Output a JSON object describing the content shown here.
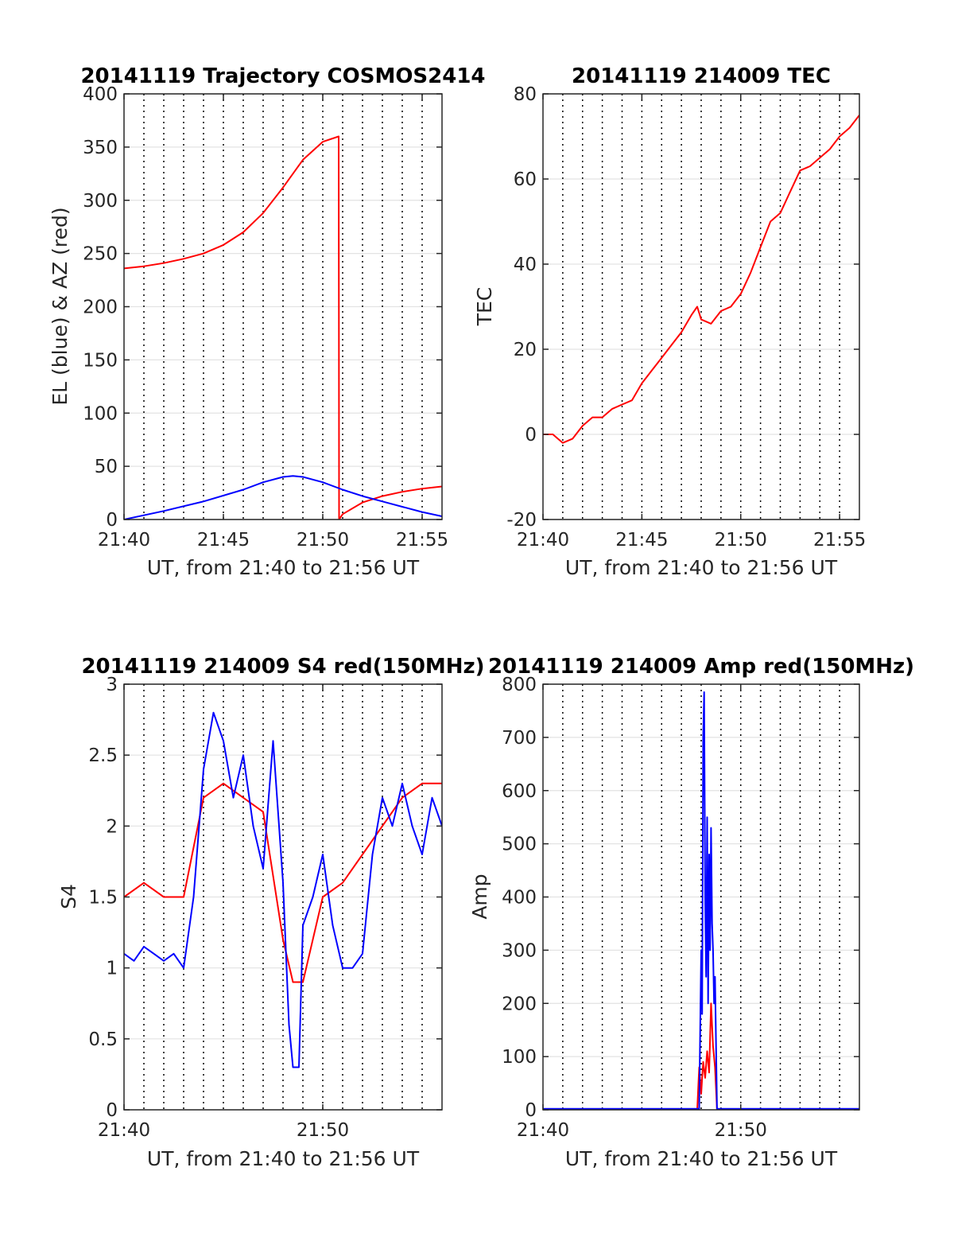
{
  "chart_data": [
    {
      "id": "traj",
      "type": "line",
      "title": "20141119 Trajectory COSMOS2414",
      "xlabel": "UT, from 21:40 to 21:56 UT",
      "ylabel": "EL (blue) & AZ (red)",
      "xlim": [
        0,
        16
      ],
      "ylim": [
        0,
        400
      ],
      "xticks": [
        0,
        5,
        10,
        15
      ],
      "xtick_labels": [
        "21:40",
        "21:45",
        "21:50",
        "21:55"
      ],
      "yticks": [
        0,
        50,
        100,
        150,
        200,
        250,
        300,
        350,
        400
      ],
      "ytick_labels": [
        "0",
        "50",
        "100",
        "150",
        "200",
        "250",
        "300",
        "350",
        "400"
      ],
      "grid": true,
      "series": [
        {
          "color": "#ff0000",
          "x": [
            0,
            1,
            2,
            3,
            4,
            5,
            6,
            7,
            8,
            9,
            10,
            10.8,
            10.81,
            10.82,
            11,
            12,
            13,
            14,
            15,
            16
          ],
          "y": [
            236,
            238,
            241,
            245,
            250,
            258,
            270,
            288,
            312,
            338,
            355,
            360,
            180,
            0,
            5,
            16,
            22,
            26,
            29,
            31
          ]
        },
        {
          "color": "#0000ff",
          "x": [
            0,
            2,
            4,
            6,
            7,
            8,
            8.5,
            9,
            10,
            11,
            12,
            13,
            14,
            15,
            16
          ],
          "y": [
            0,
            8,
            17,
            28,
            35,
            40,
            41,
            40,
            35,
            28,
            22,
            17,
            12,
            7,
            3
          ]
        }
      ]
    },
    {
      "id": "tec",
      "type": "line",
      "title": "20141119 214009 TEC",
      "xlabel": "UT, from 21:40 to 21:56 UT",
      "ylabel": "TEC",
      "xlim": [
        0,
        16
      ],
      "ylim": [
        -20,
        80
      ],
      "xticks": [
        0,
        5,
        10,
        15
      ],
      "xtick_labels": [
        "21:40",
        "21:45",
        "21:50",
        "21:55"
      ],
      "yticks": [
        -20,
        0,
        20,
        40,
        60,
        80
      ],
      "ytick_labels": [
        "-20",
        "0",
        "20",
        "40",
        "60",
        "80"
      ],
      "grid": true,
      "series": [
        {
          "color": "#ff0000",
          "x": [
            0,
            0.5,
            1,
            1.5,
            2,
            2.5,
            3,
            3.5,
            4,
            4.5,
            5,
            5.5,
            6,
            6.5,
            7,
            7.5,
            7.8,
            8,
            8.5,
            9,
            9.5,
            10,
            10.5,
            11,
            11.5,
            12,
            12.5,
            13,
            13.5,
            14,
            14.5,
            15,
            15.5,
            16
          ],
          "y": [
            0,
            0,
            -2,
            -1,
            2,
            4,
            4,
            6,
            7,
            8,
            12,
            15,
            18,
            21,
            24,
            28,
            30,
            27,
            26,
            29,
            30,
            33,
            38,
            44,
            50,
            52,
            57,
            62,
            63,
            65,
            67,
            70,
            72,
            75
          ]
        }
      ]
    },
    {
      "id": "s4",
      "type": "line",
      "title": "20141119 214009 S4 red(150MHz)",
      "xlabel": "UT, from 21:40 to 21:56 UT",
      "ylabel": "S4",
      "xlim": [
        0,
        16
      ],
      "ylim": [
        0,
        3
      ],
      "xticks": [
        0,
        10
      ],
      "xtick_labels": [
        "21:40",
        "21:50"
      ],
      "yticks": [
        0,
        0.5,
        1,
        1.5,
        2,
        2.5,
        3
      ],
      "ytick_labels": [
        "0",
        "0.5",
        "1",
        "1.5",
        "2",
        "2.5",
        "3"
      ],
      "grid": true,
      "series": [
        {
          "color": "#ff0000",
          "x": [
            0,
            1,
            2,
            3,
            4,
            5,
            6,
            7,
            8,
            8.5,
            9,
            9.5,
            10,
            11,
            12,
            13,
            14,
            15,
            16
          ],
          "y": [
            1.5,
            1.6,
            1.5,
            1.5,
            2.2,
            2.3,
            2.2,
            2.1,
            1.2,
            0.9,
            0.9,
            1.2,
            1.5,
            1.6,
            1.8,
            2.0,
            2.2,
            2.3,
            2.3
          ]
        },
        {
          "color": "#0000ff",
          "x": [
            0,
            0.5,
            1,
            1.5,
            2,
            2.5,
            3,
            3.5,
            4,
            4.5,
            5,
            5.5,
            6,
            6.5,
            7,
            7.5,
            8,
            8.3,
            8.5,
            8.8,
            9,
            9.5,
            10,
            10.5,
            11,
            11.5,
            12,
            12.5,
            13,
            13.5,
            14,
            14.5,
            15,
            15.5,
            16
          ],
          "y": [
            1.1,
            1.05,
            1.15,
            1.1,
            1.05,
            1.1,
            1.0,
            1.5,
            2.4,
            2.8,
            2.6,
            2.2,
            2.5,
            2.0,
            1.7,
            2.6,
            1.6,
            0.6,
            0.3,
            0.3,
            1.3,
            1.5,
            1.8,
            1.3,
            1.0,
            1.0,
            1.1,
            1.8,
            2.2,
            2.0,
            2.3,
            2.0,
            1.8,
            2.2,
            2.0
          ]
        }
      ]
    },
    {
      "id": "amp",
      "type": "line",
      "title": "20141119 214009 Amp red(150MHz)",
      "xlabel": "UT, from 21:40 to 21:56 UT",
      "ylabel": "Amp",
      "xlim": [
        0,
        16
      ],
      "ylim": [
        0,
        800
      ],
      "xticks": [
        0,
        10
      ],
      "xtick_labels": [
        "21:40",
        "21:50"
      ],
      "yticks": [
        0,
        100,
        200,
        300,
        400,
        500,
        600,
        700,
        800
      ],
      "ytick_labels": [
        "0",
        "100",
        "200",
        "300",
        "400",
        "500",
        "600",
        "700",
        "800"
      ],
      "grid": true,
      "series": [
        {
          "color": "#ff0000",
          "x": [
            0,
            7.8,
            7.9,
            8.0,
            8.1,
            8.2,
            8.3,
            8.4,
            8.5,
            8.6,
            8.7,
            8.8,
            16
          ],
          "y": [
            0,
            0,
            80,
            30,
            90,
            60,
            110,
            70,
            200,
            120,
            80,
            0,
            0
          ]
        },
        {
          "color": "#0000ff",
          "x": [
            0,
            7.9,
            8.0,
            8.05,
            8.1,
            8.15,
            8.2,
            8.25,
            8.3,
            8.35,
            8.4,
            8.45,
            8.5,
            8.55,
            8.6,
            8.65,
            8.7,
            8.8,
            16
          ],
          "y": [
            2,
            2,
            300,
            180,
            700,
            785,
            400,
            250,
            550,
            200,
            480,
            300,
            530,
            350,
            300,
            200,
            250,
            2,
            2
          ]
        }
      ]
    }
  ]
}
